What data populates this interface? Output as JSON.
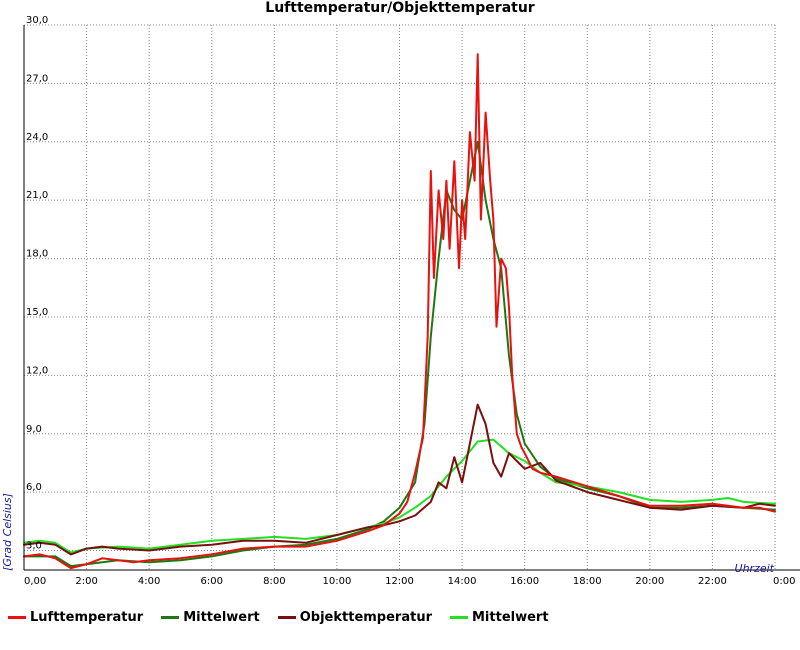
{
  "chart_data": {
    "type": "line",
    "title": "Lufttemperatur/Objekttemperatur",
    "xlabel": "Uhrzeit",
    "ylabel": "[Grad Celsius]",
    "x_ticks": [
      "0,00",
      "2:00",
      "4:00",
      "6:00",
      "8:00",
      "10:00",
      "12:00",
      "14:00",
      "16:00",
      "18:00",
      "20:00",
      "22:00",
      "0:00"
    ],
    "y_ticks": [
      "3,0",
      "6,0",
      "9,0",
      "12,0",
      "15,0",
      "18,0",
      "21,0",
      "24,0",
      "27,0",
      "30,0"
    ],
    "xlim": [
      0,
      24
    ],
    "ylim": [
      2,
      30
    ],
    "grid": true,
    "legend_position": "bottom",
    "series": [
      {
        "name": "Lufttemperatur",
        "color": "#e8110f",
        "x": [
          0,
          0.5,
          1,
          1.5,
          2,
          2.5,
          3,
          3.5,
          4,
          5,
          6,
          7,
          8,
          9,
          10,
          11,
          11.5,
          12,
          12.25,
          12.5,
          12.75,
          12.9,
          13,
          13.1,
          13.25,
          13.4,
          13.5,
          13.6,
          13.75,
          13.9,
          14,
          14.1,
          14.25,
          14.4,
          14.5,
          14.6,
          14.75,
          14.9,
          15,
          15.1,
          15.25,
          15.4,
          15.5,
          15.6,
          15.75,
          15.9,
          16,
          16.25,
          16.5,
          17,
          18,
          19,
          20,
          21,
          22,
          23,
          23.5,
          24
        ],
        "y": [
          2.7,
          2.8,
          2.6,
          2.1,
          2.3,
          2.6,
          2.5,
          2.4,
          2.5,
          2.6,
          2.8,
          3.1,
          3.2,
          3.2,
          3.5,
          4.0,
          4.3,
          4.9,
          5.5,
          7.0,
          8.8,
          14.0,
          22.5,
          17.0,
          21.5,
          19.0,
          22.0,
          18.5,
          23.0,
          17.5,
          21.0,
          19.0,
          24.5,
          22.0,
          28.5,
          20.0,
          25.5,
          22.0,
          20.0,
          14.5,
          18.0,
          17.5,
          15.5,
          12.0,
          9.0,
          8.3,
          8.0,
          7.2,
          7.0,
          6.8,
          6.3,
          5.8,
          5.3,
          5.3,
          5.4,
          5.2,
          5.2,
          5.0
        ]
      },
      {
        "name": "Mittelwert",
        "color": "#1a7a12",
        "x": [
          0,
          1,
          1.5,
          2,
          3,
          4,
          5,
          6,
          7,
          8,
          9,
          10,
          11,
          11.5,
          12,
          12.5,
          12.8,
          13,
          13.25,
          13.5,
          13.75,
          14,
          14.25,
          14.5,
          14.75,
          15,
          15.25,
          15.5,
          15.75,
          16,
          16.5,
          17,
          18,
          19,
          20,
          21,
          22,
          23,
          24
        ],
        "y": [
          2.7,
          2.7,
          2.2,
          2.3,
          2.5,
          2.4,
          2.5,
          2.7,
          3.0,
          3.2,
          3.3,
          3.6,
          4.1,
          4.5,
          5.2,
          6.5,
          9.5,
          14.0,
          18.0,
          21.5,
          20.5,
          20.0,
          22.0,
          24.0,
          21.0,
          19.0,
          17.5,
          13.0,
          10.0,
          8.5,
          7.3,
          6.7,
          6.2,
          5.8,
          5.2,
          5.2,
          5.3,
          5.2,
          5.1
        ]
      },
      {
        "name": "Objekttemperatur",
        "color": "#7a0f0f",
        "x": [
          0,
          0.5,
          1,
          1.5,
          2,
          2.5,
          3,
          4,
          5,
          6,
          7,
          8,
          9,
          10,
          11,
          11.5,
          12,
          12.5,
          13,
          13.25,
          13.5,
          13.75,
          14,
          14.25,
          14.5,
          14.75,
          15,
          15.25,
          15.5,
          15.75,
          16,
          16.5,
          17,
          18,
          19,
          20,
          21,
          22,
          23,
          23.5,
          24
        ],
        "y": [
          3.3,
          3.4,
          3.3,
          2.8,
          3.1,
          3.2,
          3.1,
          3.0,
          3.2,
          3.3,
          3.5,
          3.5,
          3.4,
          3.8,
          4.2,
          4.3,
          4.5,
          4.8,
          5.5,
          6.5,
          6.2,
          7.8,
          6.5,
          8.5,
          10.5,
          9.5,
          7.5,
          6.8,
          8.0,
          7.6,
          7.2,
          7.5,
          6.6,
          6.0,
          5.6,
          5.2,
          5.1,
          5.3,
          5.2,
          5.4,
          5.3
        ]
      },
      {
        "name": "Mittelwert",
        "color": "#22e022",
        "x": [
          0,
          0.5,
          1,
          1.5,
          2,
          3,
          4,
          5,
          6,
          7,
          8,
          9,
          10,
          11,
          11.5,
          12,
          12.5,
          13,
          13.5,
          14,
          14.5,
          15,
          15.5,
          16,
          16.5,
          17,
          18,
          19,
          20,
          21,
          22,
          22.5,
          23,
          24
        ],
        "y": [
          3.4,
          3.5,
          3.4,
          2.9,
          3.1,
          3.2,
          3.1,
          3.3,
          3.5,
          3.6,
          3.7,
          3.6,
          3.8,
          4.2,
          4.4,
          4.7,
          5.2,
          5.8,
          6.8,
          7.6,
          8.6,
          8.7,
          8.0,
          7.6,
          7.0,
          6.5,
          6.3,
          6.0,
          5.6,
          5.5,
          5.6,
          5.7,
          5.5,
          5.4
        ]
      }
    ]
  }
}
